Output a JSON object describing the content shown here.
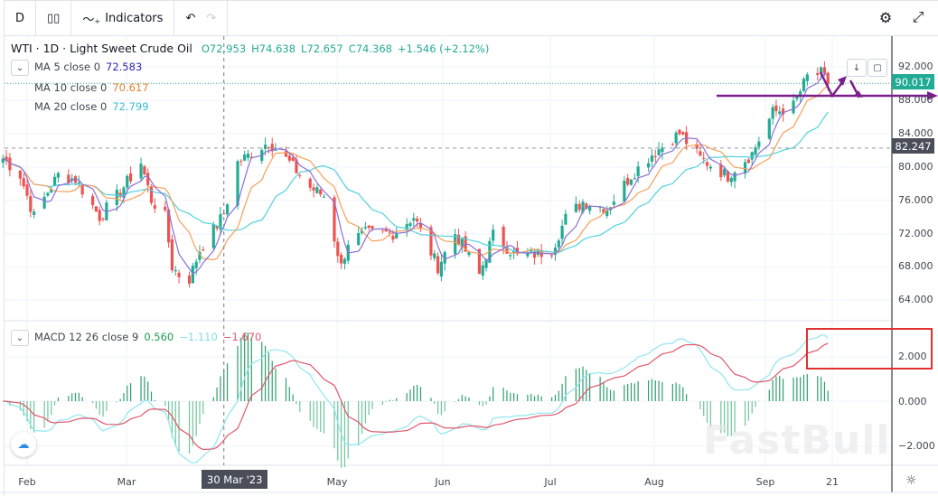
{
  "toolbar": {
    "interval": "D",
    "chart_type_icon": "candles-icon",
    "indicators_label": "Indicators",
    "undo_icon": "undo-icon",
    "redo_icon": "redo-icon",
    "settings_icon": "gear-icon",
    "fullscreen_icon": "fullscreen-icon"
  },
  "legend": {
    "symbol": "WTI · 1D · Light Sweet Crude Oil",
    "open": "O72.953",
    "high": "H74.638",
    "low": "L72.657",
    "close": "C74.368",
    "change": "+1.546 (+2.12%)",
    "ma5_label": "MA 5 close 0",
    "ma5_value": "72.583",
    "ma10_label": "MA 10 close 0",
    "ma10_value": "70.617",
    "ma20_label": "MA 20 close 0",
    "ma20_value": "72.799",
    "macd_label": "MACD 12 26 close 9",
    "macd_hist": "0.560",
    "macd_line": "−1.110",
    "macd_signal": "−1.670"
  },
  "price_axis": [
    "92.000",
    "88.000",
    "84.000",
    "80.000",
    "76.000",
    "72.000",
    "68.000",
    "64.000"
  ],
  "macd_axis": [
    "2.000",
    "0.000",
    "−2.000"
  ],
  "price_labels": {
    "last": "90.017",
    "line": "82.247"
  },
  "time_axis": [
    "Feb",
    "Mar",
    "May",
    "Jun",
    "Jul",
    "Aug",
    "Sep",
    "21"
  ],
  "crosshair_date": "30 Mar '23",
  "watermark": "FastBull",
  "colors": {
    "up": "#22ab94",
    "down": "#ef5350",
    "ma5": "#8c6fd6",
    "ma10": "#f5a05a",
    "ma20": "#4fd1dc",
    "macd": "#8fe6ee",
    "signal": "#e0566a",
    "annotation": "#7b1f8c",
    "highlight": "#e03131"
  },
  "chart_data": {
    "type": "candlestick",
    "symbol": "WTI",
    "interval": "1D",
    "ylim": [
      62,
      95
    ],
    "last_price": 90.017,
    "horizontal_line": 82.247,
    "close_path": [
      [
        "2023-01-25",
        81
      ],
      [
        "2023-01-30",
        79
      ],
      [
        "2023-02-03",
        74
      ],
      [
        "2023-02-07",
        77
      ],
      [
        "2023-02-10",
        79
      ],
      [
        "2023-02-15",
        78.5
      ],
      [
        "2023-02-22",
        74
      ],
      [
        "2023-02-28",
        77
      ],
      [
        "2023-03-06",
        80.5
      ],
      [
        "2023-03-09",
        76
      ],
      [
        "2023-03-13",
        74
      ],
      [
        "2023-03-15",
        68
      ],
      [
        "2023-03-17",
        67
      ],
      [
        "2023-03-20",
        66.5
      ],
      [
        "2023-03-23",
        70
      ],
      [
        "2023-03-28",
        73
      ],
      [
        "2023-03-30",
        74.37
      ],
      [
        "2023-04-03",
        80.5
      ],
      [
        "2023-04-12",
        83
      ],
      [
        "2023-04-18",
        80.5
      ],
      [
        "2023-04-24",
        77.5
      ],
      [
        "2023-04-28",
        76.5
      ],
      [
        "2023-05-03",
        68
      ],
      [
        "2023-05-05",
        71
      ],
      [
        "2023-05-10",
        72
      ],
      [
        "2023-05-18",
        72
      ],
      [
        "2023-05-24",
        74
      ],
      [
        "2023-05-31",
        68
      ],
      [
        "2023-06-05",
        72
      ],
      [
        "2023-06-12",
        67
      ],
      [
        "2023-06-16",
        71.8
      ],
      [
        "2023-06-23",
        69.2
      ],
      [
        "2023-06-28",
        69.5
      ],
      [
        "2023-07-03",
        70
      ],
      [
        "2023-07-07",
        73.8
      ],
      [
        "2023-07-12",
        75.8
      ],
      [
        "2023-07-19",
        75
      ],
      [
        "2023-07-26",
        79
      ],
      [
        "2023-08-01",
        81.5
      ],
      [
        "2023-08-09",
        84
      ],
      [
        "2023-08-15",
        81
      ],
      [
        "2023-08-23",
        78.9
      ],
      [
        "2023-08-25",
        79.8
      ],
      [
        "2023-08-30",
        81.6
      ],
      [
        "2023-09-05",
        86.5
      ],
      [
        "2023-09-11",
        87.3
      ],
      [
        "2023-09-15",
        90.8
      ],
      [
        "2023-09-19",
        91.2
      ],
      [
        "2023-09-21",
        90.02
      ]
    ],
    "indicators": [
      "MA 5",
      "MA 10",
      "MA 20",
      "MACD 12 26 9"
    ]
  }
}
